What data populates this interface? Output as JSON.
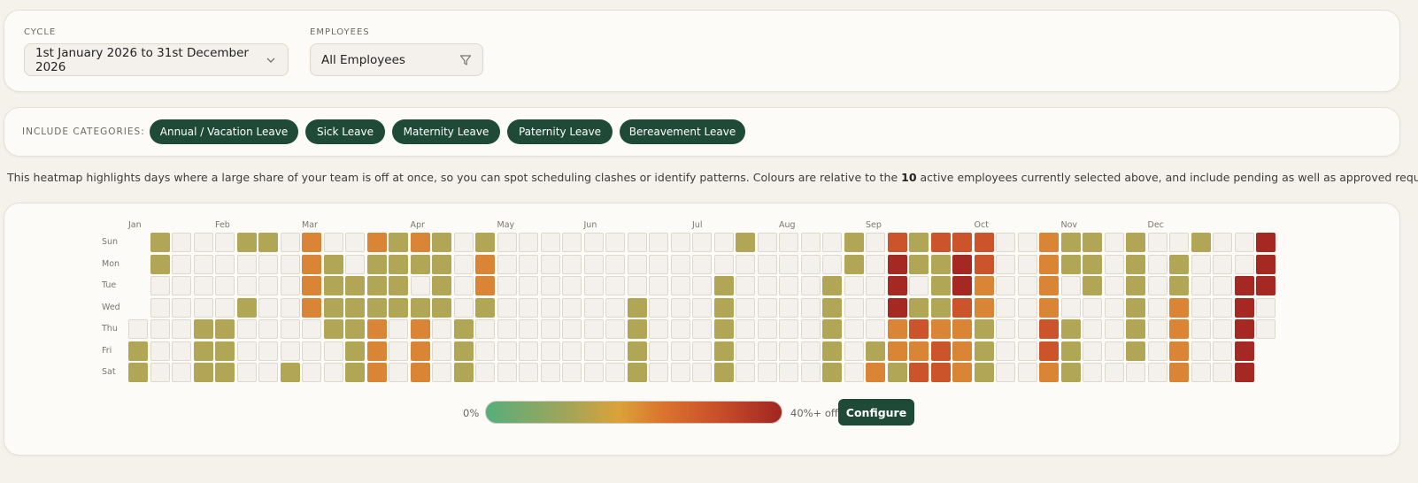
{
  "filters": {
    "cycle_label": "CYCLE",
    "cycle_value": "1st January 2026 to 31st December 2026",
    "employees_label": "EMPLOYEES",
    "employees_value": "All Employees"
  },
  "categories": {
    "label": "INCLUDE CATEGORIES:",
    "items": [
      "Annual / Vacation Leave",
      "Sick Leave",
      "Maternity Leave",
      "Paternity Leave",
      "Bereavement Leave"
    ]
  },
  "description": {
    "before": "This heatmap highlights days where a large share of your team is off at once, so you can spot scheduling clashes or identify patterns. Colours are relative to the ",
    "count": "10",
    "after": " active employees currently selected above, and include pending as well as approved requests."
  },
  "heatmap": {
    "months": [
      "Jan",
      "Feb",
      "Mar",
      "Apr",
      "May",
      "Jun",
      "Jul",
      "Aug",
      "Sep",
      "Oct",
      "Nov",
      "Dec"
    ],
    "days": [
      "Sun",
      "Mon",
      "Tue",
      "Wed",
      "Thu",
      "Fri",
      "Sat"
    ],
    "level_colors": [
      "#f4f1ec",
      "#b1a655",
      "#da8535",
      "#cb542b",
      "#a62822"
    ],
    "weeks": [
      [
        null,
        null,
        null,
        null,
        0,
        1,
        1
      ],
      [
        1,
        1,
        0,
        0,
        0,
        0,
        0
      ],
      [
        0,
        0,
        0,
        0,
        0,
        0,
        0
      ],
      [
        0,
        0,
        0,
        0,
        1,
        1,
        1
      ],
      [
        0,
        0,
        0,
        0,
        1,
        1,
        1
      ],
      [
        1,
        0,
        0,
        1,
        0,
        0,
        0
      ],
      [
        1,
        0,
        0,
        0,
        0,
        0,
        0
      ],
      [
        0,
        0,
        0,
        0,
        0,
        0,
        1
      ],
      [
        2,
        2,
        2,
        2,
        0,
        0,
        0
      ],
      [
        0,
        1,
        1,
        1,
        1,
        0,
        0
      ],
      [
        0,
        0,
        1,
        1,
        1,
        1,
        1
      ],
      [
        2,
        1,
        1,
        1,
        2,
        2,
        2
      ],
      [
        1,
        1,
        1,
        1,
        0,
        0,
        0
      ],
      [
        2,
        1,
        0,
        1,
        2,
        2,
        2
      ],
      [
        1,
        1,
        1,
        1,
        0,
        0,
        0
      ],
      [
        0,
        0,
        0,
        0,
        1,
        1,
        1
      ],
      [
        1,
        2,
        2,
        1,
        0,
        0,
        0
      ],
      [
        0,
        0,
        0,
        0,
        0,
        0,
        0
      ],
      [
        0,
        0,
        0,
        0,
        0,
        0,
        0
      ],
      [
        0,
        0,
        0,
        0,
        0,
        0,
        0
      ],
      [
        0,
        0,
        0,
        0,
        0,
        0,
        0
      ],
      [
        0,
        0,
        0,
        0,
        0,
        0,
        0
      ],
      [
        0,
        0,
        0,
        0,
        0,
        0,
        0
      ],
      [
        0,
        0,
        0,
        1,
        1,
        1,
        1
      ],
      [
        0,
        0,
        0,
        0,
        0,
        0,
        0
      ],
      [
        0,
        0,
        0,
        0,
        0,
        0,
        0
      ],
      [
        0,
        0,
        0,
        0,
        0,
        0,
        0
      ],
      [
        0,
        0,
        1,
        1,
        1,
        1,
        1
      ],
      [
        1,
        0,
        0,
        0,
        0,
        0,
        0
      ],
      [
        0,
        0,
        0,
        0,
        0,
        0,
        0
      ],
      [
        0,
        0,
        0,
        0,
        0,
        0,
        0
      ],
      [
        0,
        0,
        0,
        0,
        0,
        0,
        0
      ],
      [
        0,
        0,
        1,
        1,
        1,
        1,
        1
      ],
      [
        1,
        1,
        0,
        0,
        0,
        0,
        0
      ],
      [
        0,
        0,
        0,
        0,
        0,
        1,
        2
      ],
      [
        3,
        4,
        4,
        4,
        2,
        2,
        1
      ],
      [
        1,
        1,
        0,
        1,
        3,
        2,
        3
      ],
      [
        3,
        1,
        1,
        1,
        2,
        3,
        3
      ],
      [
        3,
        4,
        4,
        3,
        2,
        2,
        2
      ],
      [
        3,
        3,
        2,
        2,
        1,
        1,
        1
      ],
      [
        0,
        0,
        0,
        0,
        0,
        0,
        0
      ],
      [
        0,
        0,
        0,
        0,
        0,
        0,
        0
      ],
      [
        2,
        2,
        2,
        2,
        3,
        3,
        2
      ],
      [
        1,
        1,
        0,
        0,
        1,
        1,
        1
      ],
      [
        1,
        1,
        1,
        0,
        0,
        0,
        0
      ],
      [
        0,
        0,
        0,
        0,
        0,
        0,
        0
      ],
      [
        1,
        1,
        1,
        1,
        1,
        1,
        0
      ],
      [
        0,
        0,
        0,
        0,
        0,
        0,
        0
      ],
      [
        0,
        1,
        1,
        2,
        2,
        2,
        2
      ],
      [
        1,
        0,
        0,
        0,
        0,
        0,
        0
      ],
      [
        0,
        0,
        0,
        0,
        0,
        0,
        0
      ],
      [
        0,
        0,
        4,
        4,
        4,
        4,
        4
      ],
      [
        4,
        4,
        4,
        0,
        0,
        null,
        null
      ]
    ]
  },
  "legend": {
    "min_label": "0%",
    "max_label": "40%+ off",
    "configure_label": "Configure"
  }
}
